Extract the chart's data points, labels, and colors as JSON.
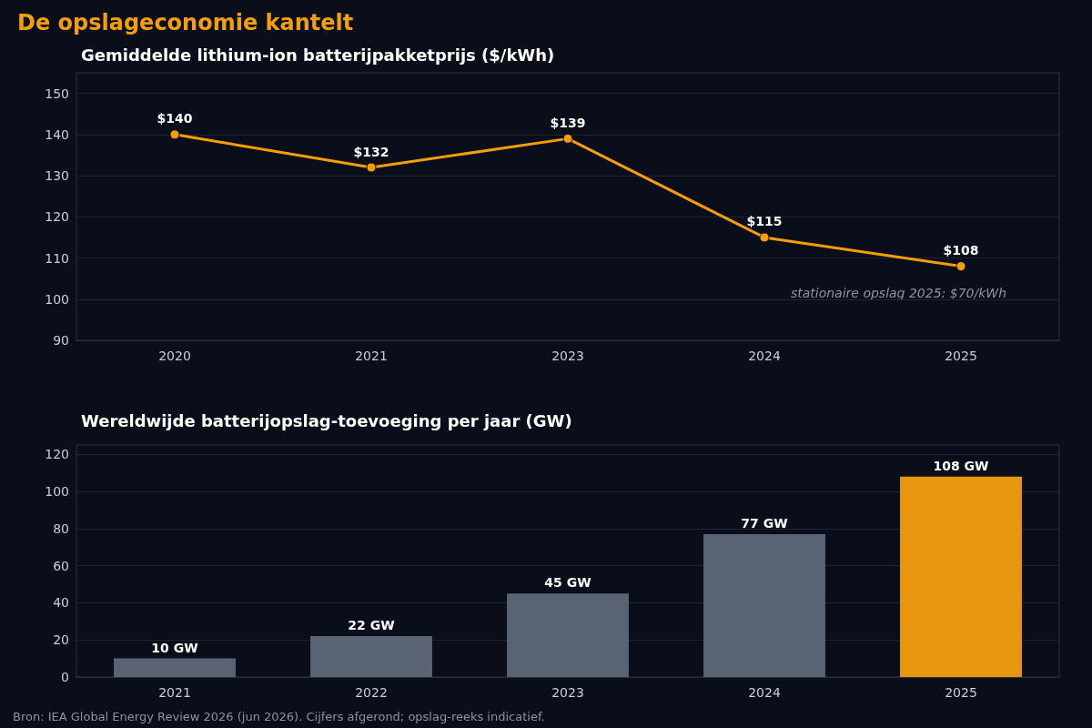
{
  "chart_data": [
    {
      "type": "line",
      "title": "De opslageconomie kantelt",
      "subtitle": "Gemiddelde lithium-ion batterijpakketprijs ($/kWh)",
      "categories": [
        "2020",
        "2021",
        "2023",
        "2024",
        "2025"
      ],
      "series": [
        {
          "color": "#f59e0b",
          "values": [
            140,
            132,
            139,
            115,
            108
          ],
          "value_labels": [
            "$140",
            "$132",
            "$139",
            "$115",
            "$108"
          ]
        }
      ],
      "ylim": [
        90,
        155
      ],
      "yticks": [
        90,
        100,
        110,
        120,
        130,
        140,
        150
      ],
      "grid": "y",
      "marker": "circle",
      "line_style": "solid",
      "annotations": [
        "stationaire opslag 2025: $70/kWh"
      ]
    },
    {
      "type": "bar",
      "title": "Wereldwijde batterijopslag-toevoeging per jaar (GW)",
      "categories": [
        "2021",
        "2022",
        "2023",
        "2024",
        "2025"
      ],
      "values": [
        10,
        22,
        45,
        77,
        108
      ],
      "colors": [
        "#5a6374",
        "#5a6374",
        "#5a6374",
        "#5a6374",
        "#e8960f"
      ],
      "value_labels": [
        "10 GW",
        "22 GW",
        "45 GW",
        "77 GW",
        "108 GW"
      ],
      "ylim": [
        0,
        125
      ],
      "yticks": [
        0,
        20,
        40,
        60,
        80,
        100,
        120
      ],
      "grid": "y",
      "annotations": [
        "Bron: IEA Global Energy Review 2026 (jun 2026). Cijfers afgerond; opslag-reeks indicatief."
      ]
    }
  ]
}
